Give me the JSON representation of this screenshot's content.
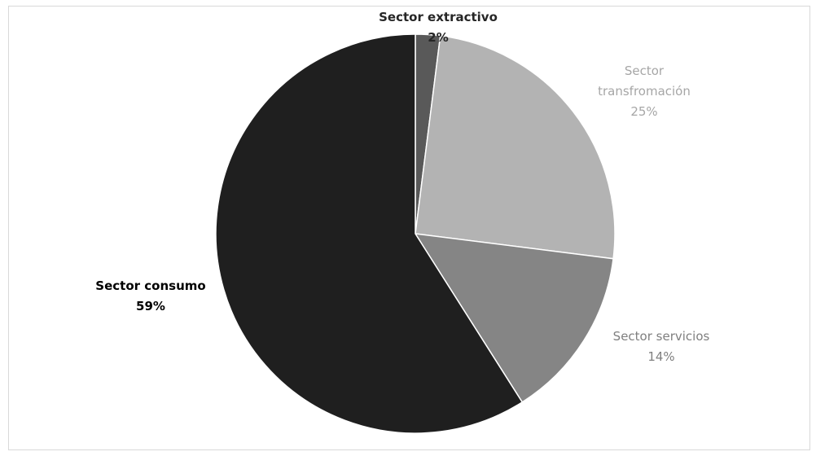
{
  "chart_data": {
    "type": "pie",
    "title": "",
    "start_angle_deg": 0,
    "direction": "clockwise",
    "legend": "none",
    "slices": [
      {
        "name": "Sector extractivo",
        "label": "Sector extractivo",
        "pct_label": "2%",
        "value": 2,
        "color": "#595959",
        "label_color": "#262626",
        "label_bold": true
      },
      {
        "name": "Sector transfromación",
        "label": "Sector transfromación",
        "pct_label": "25%",
        "value": 25,
        "color": "#b3b3b3",
        "label_color": "#a6a6a6",
        "label_bold": false
      },
      {
        "name": "Sector servicios",
        "label": "Sector servicios",
        "pct_label": "14%",
        "value": 14,
        "color": "#858585",
        "label_color": "#7f7f7f",
        "label_bold": false
      },
      {
        "name": "Sector consumo",
        "label": "Sector consumo",
        "pct_label": "59%",
        "value": 59,
        "color": "#1f1f1f",
        "label_color": "#000000",
        "label_bold": true
      }
    ]
  }
}
